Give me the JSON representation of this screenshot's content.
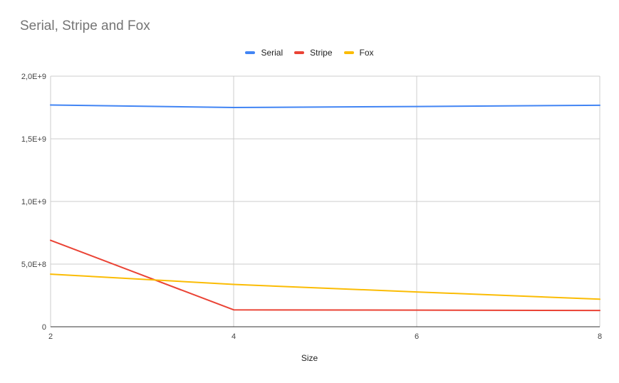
{
  "chart_data": {
    "type": "line",
    "title": "Serial, Stripe and Fox",
    "xlabel": "Size",
    "ylabel": "",
    "x": [
      2,
      4,
      6,
      8
    ],
    "xlim": [
      2,
      8
    ],
    "ylim": [
      0,
      2000000000
    ],
    "x_ticks": [
      "2",
      "4",
      "6",
      "8"
    ],
    "y_ticks": [
      "0",
      "5,0E+8",
      "1,0E+9",
      "1,5E+9",
      "2,0E+9"
    ],
    "y_tick_values": [
      0,
      500000000,
      1000000000,
      1500000000,
      2000000000
    ],
    "grid": true,
    "legend_position": "top-center",
    "series": [
      {
        "name": "Serial",
        "color": "#4285f4",
        "values": [
          1770000000,
          1750000000,
          1758000000,
          1768000000
        ]
      },
      {
        "name": "Stripe",
        "color": "#ea4335",
        "values": [
          690000000,
          135000000,
          133000000,
          130000000
        ]
      },
      {
        "name": "Fox",
        "color": "#fbbc04",
        "values": [
          420000000,
          338000000,
          278000000,
          220000000
        ]
      }
    ]
  }
}
